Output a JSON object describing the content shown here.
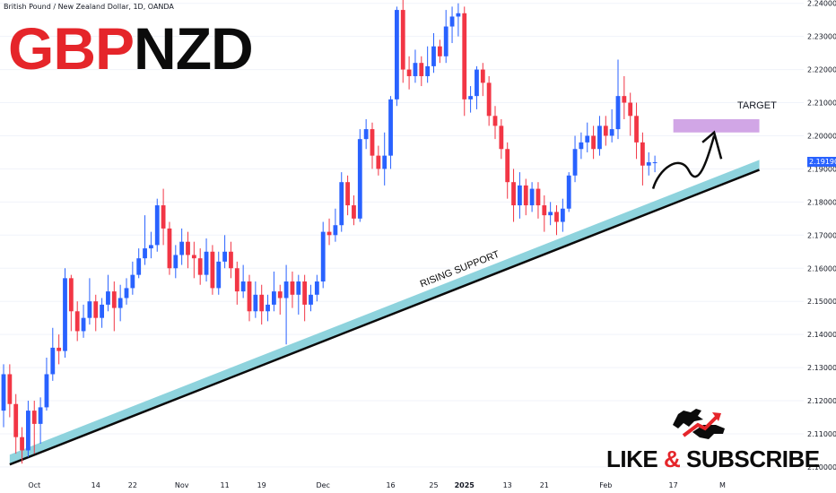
{
  "header": {
    "instrument": "British Pound / New Zealand Dollar, 1D, OANDA"
  },
  "title": {
    "part1": "GBP",
    "part2": "NZD"
  },
  "annotations": {
    "support_label": "RISING SUPPORT",
    "target_label": "TARGET",
    "cta_like": "LIKE",
    "cta_amp": "&",
    "cta_subscribe": "SUBSCRIBE"
  },
  "current_price": "2.19190",
  "colors": {
    "up": "#2962ff",
    "down": "#f23645",
    "support_band": "#8ed3dd",
    "target_box": "#d1a6e6",
    "title_red": "#e5252a",
    "title_black": "#0b0b0b"
  },
  "chart_data": {
    "type": "candlestick",
    "ylim": [
      2.097,
      2.241
    ],
    "y_ticks": [
      "2.10000",
      "2.11000",
      "2.12000",
      "2.13000",
      "2.14000",
      "2.15000",
      "2.16000",
      "2.17000",
      "2.18000",
      "2.19000",
      "2.20000",
      "2.21000",
      "2.22000",
      "2.23000",
      "2.24000"
    ],
    "y_tick_values": [
      2.1,
      2.11,
      2.12,
      2.13,
      2.14,
      2.15,
      2.16,
      2.17,
      2.18,
      2.19,
      2.2,
      2.21,
      2.22,
      2.23,
      2.24
    ],
    "x_ticks": [
      {
        "label": "Oct",
        "bar": 5
      },
      {
        "label": "14",
        "bar": 15
      },
      {
        "label": "22",
        "bar": 21
      },
      {
        "label": "Nov",
        "bar": 29
      },
      {
        "label": "11",
        "bar": 36
      },
      {
        "label": "19",
        "bar": 42
      },
      {
        "label": "Dec",
        "bar": 52
      },
      {
        "label": "16",
        "bar": 63
      },
      {
        "label": "25",
        "bar": 70
      },
      {
        "label": "2025",
        "bar": 75
      },
      {
        "label": "13",
        "bar": 82
      },
      {
        "label": "21",
        "bar": 88
      },
      {
        "label": "Feb",
        "bar": 98
      },
      {
        "label": "17",
        "bar": 109
      },
      {
        "label": "M",
        "bar": 117
      }
    ],
    "bars": [
      [
        2.117,
        2.128,
        2.131,
        2.112
      ],
      [
        2.128,
        2.119,
        2.131,
        2.115
      ],
      [
        2.119,
        2.109,
        2.122,
        2.104
      ],
      [
        2.109,
        2.105,
        2.112,
        2.101
      ],
      [
        2.105,
        2.117,
        2.12,
        2.103
      ],
      [
        2.117,
        2.113,
        2.12,
        2.104
      ],
      [
        2.113,
        2.118,
        2.121,
        2.107
      ],
      [
        2.118,
        2.128,
        2.133,
        2.117
      ],
      [
        2.128,
        2.136,
        2.142,
        2.126
      ],
      [
        2.136,
        2.135,
        2.14,
        2.131
      ],
      [
        2.135,
        2.157,
        2.16,
        2.133
      ],
      [
        2.157,
        2.147,
        2.158,
        2.141
      ],
      [
        2.147,
        2.141,
        2.15,
        2.138
      ],
      [
        2.141,
        2.145,
        2.149,
        2.139
      ],
      [
        2.145,
        2.15,
        2.157,
        2.143
      ],
      [
        2.15,
        2.145,
        2.152,
        2.141
      ],
      [
        2.145,
        2.149,
        2.151,
        2.142
      ],
      [
        2.149,
        2.153,
        2.158,
        2.147
      ],
      [
        2.153,
        2.148,
        2.156,
        2.141
      ],
      [
        2.148,
        2.151,
        2.155,
        2.144
      ],
      [
        2.151,
        2.154,
        2.157,
        2.149
      ],
      [
        2.154,
        2.158,
        2.162,
        2.152
      ],
      [
        2.158,
        2.163,
        2.166,
        2.157
      ],
      [
        2.163,
        2.166,
        2.176,
        2.161
      ],
      [
        2.166,
        2.167,
        2.171,
        2.163
      ],
      [
        2.167,
        2.179,
        2.181,
        2.165
      ],
      [
        2.179,
        2.172,
        2.184,
        2.167
      ],
      [
        2.172,
        2.16,
        2.174,
        2.158
      ],
      [
        2.16,
        2.164,
        2.167,
        2.157
      ],
      [
        2.164,
        2.168,
        2.172,
        2.161
      ],
      [
        2.168,
        2.164,
        2.171,
        2.16
      ],
      [
        2.164,
        2.163,
        2.168,
        2.157
      ],
      [
        2.163,
        2.158,
        2.166,
        2.155
      ],
      [
        2.158,
        2.165,
        2.169,
        2.156
      ],
      [
        2.165,
        2.154,
        2.167,
        2.152
      ],
      [
        2.154,
        2.162,
        2.165,
        2.152
      ],
      [
        2.162,
        2.165,
        2.17,
        2.16
      ],
      [
        2.165,
        2.16,
        2.168,
        2.157
      ],
      [
        2.16,
        2.153,
        2.162,
        2.149
      ],
      [
        2.153,
        2.156,
        2.161,
        2.151
      ],
      [
        2.156,
        2.147,
        2.158,
        2.144
      ],
      [
        2.147,
        2.152,
        2.156,
        2.145
      ],
      [
        2.152,
        2.147,
        2.155,
        2.143
      ],
      [
        2.147,
        2.149,
        2.152,
        2.144
      ],
      [
        2.149,
        2.153,
        2.159,
        2.147
      ],
      [
        2.153,
        2.151,
        2.155,
        2.146
      ],
      [
        2.151,
        2.156,
        2.161,
        2.137
      ],
      [
        2.156,
        2.152,
        2.159,
        2.148
      ],
      [
        2.152,
        2.156,
        2.158,
        2.146
      ],
      [
        2.156,
        2.149,
        2.158,
        2.144
      ],
      [
        2.149,
        2.152,
        2.155,
        2.147
      ],
      [
        2.152,
        2.156,
        2.158,
        2.15
      ],
      [
        2.156,
        2.171,
        2.174,
        2.154
      ],
      [
        2.171,
        2.17,
        2.175,
        2.167
      ],
      [
        2.17,
        2.173,
        2.178,
        2.168
      ],
      [
        2.173,
        2.186,
        2.189,
        2.171
      ],
      [
        2.186,
        2.179,
        2.188,
        2.176
      ],
      [
        2.179,
        2.175,
        2.182,
        2.173
      ],
      [
        2.175,
        2.199,
        2.202,
        2.174
      ],
      [
        2.199,
        2.202,
        2.205,
        2.196
      ],
      [
        2.202,
        2.194,
        2.204,
        2.19
      ],
      [
        2.194,
        2.19,
        2.197,
        2.188
      ],
      [
        2.19,
        2.194,
        2.201,
        2.185
      ],
      [
        2.194,
        2.211,
        2.212,
        2.19
      ],
      [
        2.211,
        2.238,
        2.239,
        2.209
      ],
      [
        2.238,
        2.22,
        2.242,
        2.216
      ],
      [
        2.22,
        2.218,
        2.224,
        2.214
      ],
      [
        2.218,
        2.222,
        2.226,
        2.216
      ],
      [
        2.222,
        2.218,
        2.224,
        2.215
      ],
      [
        2.218,
        2.221,
        2.227,
        2.216
      ],
      [
        2.221,
        2.227,
        2.231,
        2.219
      ],
      [
        2.227,
        2.224,
        2.229,
        2.222
      ],
      [
        2.224,
        2.233,
        2.238,
        2.222
      ],
      [
        2.233,
        2.236,
        2.239,
        2.228
      ],
      [
        2.236,
        2.237,
        2.24,
        2.23
      ],
      [
        2.237,
        2.211,
        2.239,
        2.206
      ],
      [
        2.211,
        2.212,
        2.215,
        2.207
      ],
      [
        2.212,
        2.22,
        2.221,
        2.208
      ],
      [
        2.22,
        2.216,
        2.222,
        2.212
      ],
      [
        2.216,
        2.206,
        2.218,
        2.203
      ],
      [
        2.206,
        2.203,
        2.209,
        2.199
      ],
      [
        2.203,
        2.196,
        2.205,
        2.193
      ],
      [
        2.196,
        2.186,
        2.198,
        2.181
      ],
      [
        2.186,
        2.179,
        2.19,
        2.174
      ],
      [
        2.179,
        2.185,
        2.189,
        2.175
      ],
      [
        2.185,
        2.179,
        2.187,
        2.176
      ],
      [
        2.179,
        2.184,
        2.186,
        2.177
      ],
      [
        2.184,
        2.179,
        2.186,
        2.175
      ],
      [
        2.179,
        2.176,
        2.182,
        2.171
      ],
      [
        2.176,
        2.177,
        2.18,
        2.173
      ],
      [
        2.177,
        2.174,
        2.179,
        2.17
      ],
      [
        2.174,
        2.178,
        2.181,
        2.171
      ],
      [
        2.178,
        2.188,
        2.189,
        2.177
      ],
      [
        2.188,
        2.196,
        2.2,
        2.186
      ],
      [
        2.196,
        2.198,
        2.201,
        2.193
      ],
      [
        2.198,
        2.2,
        2.204,
        2.195
      ],
      [
        2.2,
        2.196,
        2.203,
        2.193
      ],
      [
        2.196,
        2.203,
        2.206,
        2.194
      ],
      [
        2.203,
        2.2,
        2.206,
        2.197
      ],
      [
        2.2,
        2.202,
        2.208,
        2.198
      ],
      [
        2.202,
        2.212,
        2.223,
        2.199
      ],
      [
        2.212,
        2.21,
        2.218,
        2.205
      ],
      [
        2.21,
        2.206,
        2.213,
        2.2
      ],
      [
        2.206,
        2.198,
        2.21,
        2.193
      ],
      [
        2.198,
        2.191,
        2.201,
        2.185
      ],
      [
        2.191,
        2.192,
        2.195,
        2.188
      ],
      [
        2.192,
        2.192,
        2.194,
        2.189
      ]
    ],
    "support_line": {
      "start": {
        "bar": 1,
        "price": 2.101
      },
      "end": {
        "bar": 123,
        "price": 2.19
      }
    },
    "target_zone": {
      "bar_from": 109,
      "bar_to": 123,
      "price_from": 2.201,
      "price_to": 2.205
    }
  }
}
